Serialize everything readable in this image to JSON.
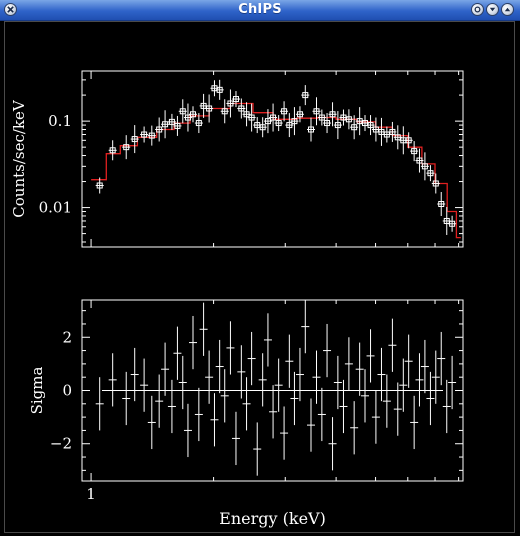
{
  "window": {
    "title": "ChIPS",
    "buttons": [
      "close-icon",
      "restore-icon",
      "minimize-icon",
      "maximize-icon"
    ]
  },
  "colors": {
    "background": "#000000",
    "foreground": "#ffffff",
    "model": "#e02020",
    "titlebar": "#2f63c9"
  },
  "chart_data": [
    {
      "type": "scatter",
      "title": "",
      "ylabel": "Counts/sec/keV",
      "xlabel": "",
      "yscale": "log",
      "xscale": "log",
      "xlim": [
        0.95,
        8.2
      ],
      "ylim": [
        0.0035,
        0.38
      ],
      "yticklabels": [
        "0.1",
        "0.01"
      ],
      "yticks": [
        0.1,
        0.01
      ],
      "series": [
        {
          "kind": "data-points-with-errorbars",
          "x": [
            1.05,
            1.13,
            1.22,
            1.28,
            1.35,
            1.41,
            1.47,
            1.52,
            1.58,
            1.63,
            1.68,
            1.73,
            1.78,
            1.84,
            1.89,
            1.95,
            2.01,
            2.07,
            2.13,
            2.2,
            2.27,
            2.34,
            2.41,
            2.48,
            2.56,
            2.64,
            2.72,
            2.8,
            2.89,
            2.98,
            3.07,
            3.16,
            3.26,
            3.36,
            3.47,
            3.58,
            3.69,
            3.8,
            3.92,
            4.04,
            4.17,
            4.3,
            4.43,
            4.57,
            4.71,
            4.86,
            5.01,
            5.17,
            5.33,
            5.5,
            5.67,
            5.85,
            6.03,
            6.22,
            6.41,
            6.61,
            6.82,
            7.03,
            7.25,
            7.48,
            7.71
          ],
          "y": [
            0.018,
            0.046,
            0.05,
            0.062,
            0.07,
            0.068,
            0.08,
            0.092,
            0.098,
            0.088,
            0.13,
            0.11,
            0.12,
            0.095,
            0.15,
            0.14,
            0.24,
            0.23,
            0.13,
            0.16,
            0.18,
            0.14,
            0.12,
            0.11,
            0.09,
            0.085,
            0.1,
            0.11,
            0.095,
            0.13,
            0.09,
            0.1,
            0.12,
            0.2,
            0.08,
            0.13,
            0.11,
            0.095,
            0.12,
            0.09,
            0.11,
            0.105,
            0.085,
            0.1,
            0.095,
            0.09,
            0.08,
            0.075,
            0.07,
            0.075,
            0.065,
            0.06,
            0.06,
            0.045,
            0.035,
            0.03,
            0.025,
            0.019,
            0.011,
            0.007,
            0.0065
          ]
        },
        {
          "kind": "model-step",
          "x": [
            1.0,
            1.09,
            1.18,
            1.3,
            1.45,
            1.6,
            1.75,
            1.95,
            2.2,
            2.5,
            2.8,
            3.2,
            3.6,
            4.0,
            4.5,
            5.0,
            5.5,
            6.0,
            6.5,
            7.0,
            7.5,
            7.9,
            8.1
          ],
          "y": [
            0.021,
            0.042,
            0.052,
            0.065,
            0.08,
            0.095,
            0.115,
            0.14,
            0.16,
            0.125,
            0.105,
            0.108,
            0.11,
            0.105,
            0.098,
            0.085,
            0.068,
            0.05,
            0.032,
            0.019,
            0.009,
            0.0045,
            0.0045
          ]
        }
      ]
    },
    {
      "type": "scatter",
      "title": "",
      "ylabel": "Sigma",
      "xlabel": "Energy (keV)",
      "xscale": "log",
      "xlim": [
        0.95,
        8.2
      ],
      "ylim": [
        -3.4,
        3.4
      ],
      "yticklabels": [
        "2",
        "0",
        "−2"
      ],
      "yticks": [
        2,
        0,
        -2
      ],
      "xticklabels": [
        "1"
      ],
      "xticks": [
        1
      ],
      "series": [
        {
          "kind": "residuals-with-errorbars",
          "x": [
            1.05,
            1.13,
            1.22,
            1.28,
            1.35,
            1.41,
            1.47,
            1.52,
            1.58,
            1.63,
            1.68,
            1.73,
            1.78,
            1.84,
            1.89,
            1.95,
            2.01,
            2.07,
            2.13,
            2.2,
            2.27,
            2.34,
            2.41,
            2.48,
            2.56,
            2.64,
            2.72,
            2.8,
            2.89,
            2.98,
            3.07,
            3.16,
            3.26,
            3.36,
            3.47,
            3.58,
            3.69,
            3.8,
            3.92,
            4.04,
            4.17,
            4.3,
            4.43,
            4.57,
            4.71,
            4.86,
            5.01,
            5.17,
            5.33,
            5.5,
            5.67,
            5.85,
            6.03,
            6.22,
            6.41,
            6.61,
            6.82,
            7.03,
            7.25,
            7.48,
            7.71
          ],
          "y": [
            -0.5,
            0.4,
            -0.3,
            0.6,
            0.2,
            -1.2,
            -0.4,
            0.8,
            -0.6,
            1.4,
            0.3,
            -1.5,
            1.8,
            -0.9,
            2.3,
            0.5,
            -1.1,
            0.9,
            -0.2,
            1.6,
            -1.8,
            0.7,
            -0.5,
            1.2,
            -2.2,
            0.4,
            1.9,
            -0.8,
            0.2,
            -1.6,
            1.1,
            -0.3,
            0.6,
            2.4,
            -1.3,
            0.5,
            -0.9,
            1.5,
            -2.0,
            0.3,
            -0.6,
            1.0,
            -1.4,
            0.8,
            -0.2,
            1.3,
            -1.0,
            0.6,
            -0.4,
            1.7,
            -0.7,
            0.2,
            1.1,
            -1.2,
            0.4,
            0.9,
            -0.3,
            0.5,
            1.2,
            -0.6,
            0.3
          ]
        }
      ]
    }
  ]
}
